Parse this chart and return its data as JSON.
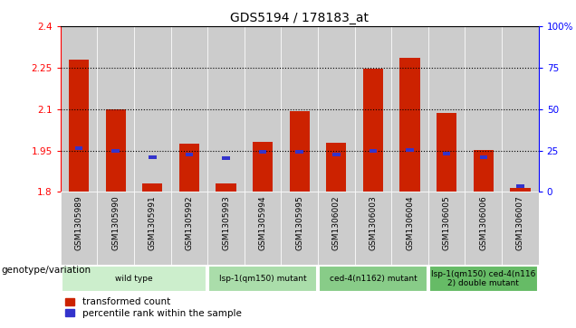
{
  "title": "GDS5194 / 178183_at",
  "samples": [
    "GSM1305989",
    "GSM1305990",
    "GSM1305991",
    "GSM1305992",
    "GSM1305993",
    "GSM1305994",
    "GSM1305995",
    "GSM1306002",
    "GSM1306003",
    "GSM1306004",
    "GSM1306005",
    "GSM1306006",
    "GSM1306007"
  ],
  "red_values": [
    2.28,
    2.1,
    1.83,
    1.975,
    1.83,
    1.983,
    2.092,
    1.978,
    2.245,
    2.285,
    2.087,
    1.952,
    1.815
  ],
  "blue_values": [
    1.957,
    1.948,
    1.926,
    1.937,
    1.924,
    1.945,
    1.944,
    1.937,
    1.95,
    1.952,
    1.94,
    1.927,
    1.821
  ],
  "ymin": 1.8,
  "ymax": 2.4,
  "yticks": [
    1.8,
    1.95,
    2.1,
    2.25,
    2.4
  ],
  "ytick_labels": [
    "1.8",
    "1.95",
    "2.1",
    "2.25",
    "2.4"
  ],
  "right_yticks": [
    0,
    25,
    50,
    75,
    100
  ],
  "right_ytick_labels": [
    "0",
    "25",
    "50",
    "75",
    "100%"
  ],
  "bar_color": "#cc2200",
  "blue_color": "#3333cc",
  "plot_bg_color": "#d8d8d8",
  "sample_bg_color": "#cccccc",
  "groups": [
    {
      "label": "wild type",
      "start": 0,
      "end": 3,
      "color": "#cceecc"
    },
    {
      "label": "lsp-1(qm150) mutant",
      "start": 4,
      "end": 6,
      "color": "#aaddaa"
    },
    {
      "label": "ced-4(n1162) mutant",
      "start": 7,
      "end": 9,
      "color": "#88cc88"
    },
    {
      "label": "lsp-1(qm150) ced-4(n116\n2) double mutant",
      "start": 10,
      "end": 12,
      "color": "#66bb66"
    }
  ],
  "legend_label_red": "transformed count",
  "legend_label_blue": "percentile rank within the sample",
  "genotype_label": "genotype/variation",
  "bar_width": 0.55,
  "base": 1.8
}
